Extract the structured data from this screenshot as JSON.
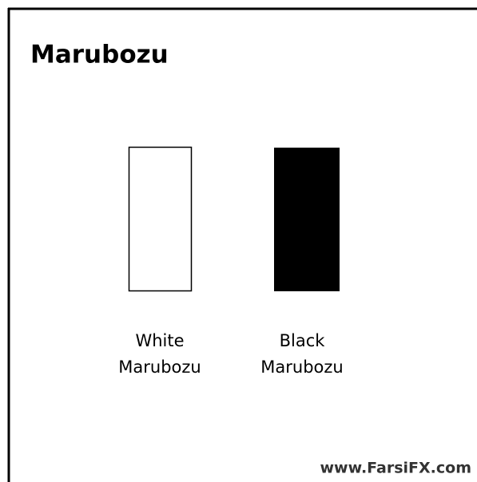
{
  "title": "Marubozu",
  "nodes": [
    {
      "label": [
        "White",
        "Marubozu"
      ]
    },
    {
      "label": [
        "Black",
        "Marubozu"
      ]
    }
  ],
  "watermark": "www.FarsiFX.com"
}
